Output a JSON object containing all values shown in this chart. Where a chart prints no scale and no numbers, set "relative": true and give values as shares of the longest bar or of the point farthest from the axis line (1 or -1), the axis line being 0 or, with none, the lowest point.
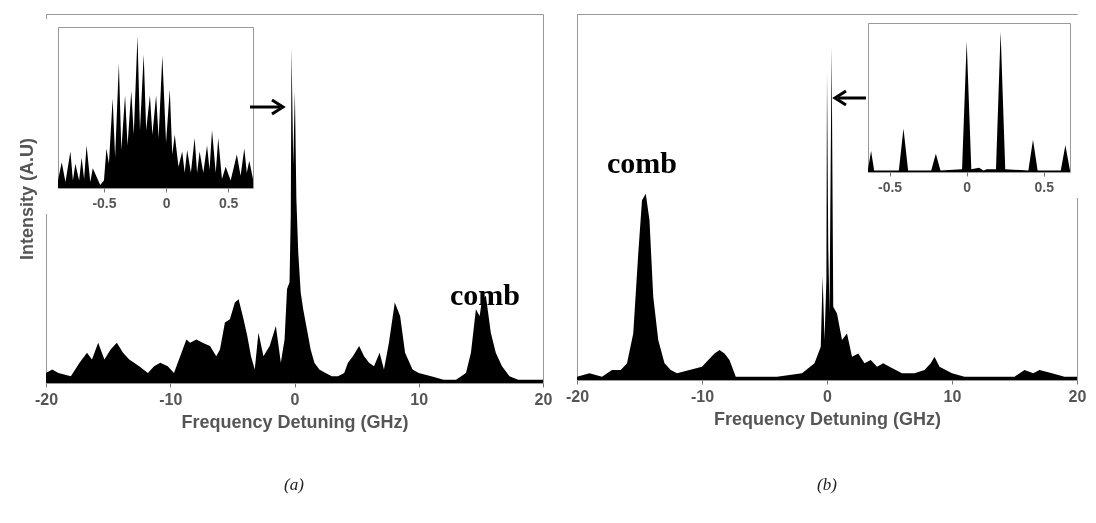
{
  "chart_data": [
    {
      "type": "area",
      "relative": true,
      "color": "#000000",
      "xlabel": "Frequency Detuning (GHz)",
      "ylabel": "Intensity (A.U)",
      "xlim": [
        -20,
        20
      ],
      "xticks": [
        -20,
        -10,
        0,
        10,
        20
      ],
      "x": [
        -20,
        -19.5,
        -19,
        -18,
        -17.3,
        -16.7,
        -16.3,
        -15.8,
        -15.3,
        -14.8,
        -14.3,
        -13.8,
        -13.3,
        -12.5,
        -11.8,
        -11.3,
        -10.8,
        -10.2,
        -9.7,
        -9.2,
        -8.7,
        -8.4,
        -7.9,
        -7.4,
        -6.8,
        -6.3,
        -6,
        -5.6,
        -5.2,
        -4.8,
        -4.5,
        -4.1,
        -3.8,
        -3.5,
        -3.2,
        -2.9,
        -2.5,
        -2,
        -1.5,
        -1.1,
        -0.8,
        -0.6,
        -0.4,
        -0.3,
        -0.24,
        -0.1,
        0.03,
        0.15,
        0.3,
        0.5,
        0.7,
        1,
        1.3,
        1.6,
        2,
        2.5,
        3,
        3.5,
        4,
        4.3,
        4.7,
        5.2,
        5.6,
        6,
        6.4,
        6.85,
        7.2,
        7.6,
        8.07,
        8.5,
        8.9,
        9.5,
        10,
        11,
        12,
        13,
        13.8,
        14.2,
        14.6,
        14.9,
        15.1,
        15.4,
        15.8,
        16.2,
        16.7,
        17.3,
        18,
        19,
        20
      ],
      "values": [
        0.03,
        0.04,
        0.03,
        0.02,
        0.06,
        0.09,
        0.07,
        0.12,
        0.07,
        0.1,
        0.12,
        0.09,
        0.07,
        0.05,
        0.03,
        0.05,
        0.06,
        0.05,
        0.03,
        0.08,
        0.13,
        0.12,
        0.13,
        0.12,
        0.11,
        0.08,
        0.1,
        0.18,
        0.19,
        0.24,
        0.25,
        0.19,
        0.14,
        0.08,
        0.04,
        0.15,
        0.08,
        0.11,
        0.17,
        0.06,
        0.13,
        0.28,
        0.3,
        0.5,
        1.0,
        0.65,
        0.87,
        0.55,
        0.39,
        0.27,
        0.22,
        0.16,
        0.1,
        0.06,
        0.04,
        0.03,
        0.02,
        0.02,
        0.03,
        0.06,
        0.08,
        0.11,
        0.08,
        0.06,
        0.05,
        0.09,
        0.04,
        0.12,
        0.24,
        0.2,
        0.09,
        0.04,
        0.03,
        0.02,
        0.01,
        0.01,
        0.03,
        0.09,
        0.22,
        0.2,
        0.25,
        0.26,
        0.15,
        0.09,
        0.05,
        0.02,
        0.01,
        0.01,
        0.01
      ],
      "annotations": [
        "comb",
        "(a)"
      ]
    },
    {
      "type": "area",
      "relative": true,
      "color": "#000000",
      "xlim": [
        -0.87,
        0.7
      ],
      "xticks": [
        -0.5,
        0,
        0.5
      ],
      "x": [
        -0.87,
        -0.84,
        -0.81,
        -0.77,
        -0.75,
        -0.73,
        -0.7,
        -0.68,
        -0.66,
        -0.64,
        -0.61,
        -0.59,
        -0.53,
        -0.5,
        -0.48,
        -0.46,
        -0.43,
        -0.41,
        -0.38,
        -0.36,
        -0.33,
        -0.31,
        -0.28,
        -0.26,
        -0.23,
        -0.21,
        -0.18,
        -0.16,
        -0.13,
        -0.11,
        -0.08,
        -0.06,
        -0.03,
        0,
        0.03,
        0.05,
        0.07,
        0.1,
        0.13,
        0.15,
        0.17,
        0.2,
        0.23,
        0.25,
        0.27,
        0.3,
        0.33,
        0.35,
        0.37,
        0.4,
        0.42,
        0.45,
        0.48,
        0.52,
        0.57,
        0.6,
        0.63,
        0.65,
        0.67,
        0.7
      ],
      "values": [
        0.05,
        0.17,
        0.04,
        0.24,
        0.05,
        0.16,
        0.05,
        0.2,
        0.06,
        0.28,
        0.04,
        0.13,
        0.02,
        0.05,
        0.26,
        0.16,
        0.59,
        0.2,
        0.82,
        0.25,
        0.61,
        0.28,
        0.64,
        0.35,
        1.0,
        0.38,
        0.88,
        0.38,
        0.61,
        0.35,
        0.61,
        0.33,
        0.87,
        0.3,
        0.65,
        0.22,
        0.35,
        0.14,
        0.24,
        0.1,
        0.25,
        0.1,
        0.33,
        0.1,
        0.24,
        0.1,
        0.28,
        0.12,
        0.38,
        0.1,
        0.33,
        0.06,
        0.14,
        0.05,
        0.22,
        0.08,
        0.26,
        0.1,
        0.18,
        0.06
      ]
    },
    {
      "type": "area",
      "relative": true,
      "color": "#000000",
      "xlabel": "Frequency Detuning (GHz)",
      "xlim": [
        -20,
        20
      ],
      "xticks": [
        -20,
        -10,
        0,
        10,
        20
      ],
      "x": [
        -20,
        -19,
        -18,
        -17.2,
        -16.5,
        -16,
        -15.5,
        -15.1,
        -14.8,
        -14.5,
        -14.2,
        -13.9,
        -13.5,
        -13,
        -12.5,
        -12,
        -11,
        -10,
        -9.5,
        -9,
        -8.6,
        -8.2,
        -7.8,
        -7.3,
        -6,
        -4,
        -2,
        -1,
        -0.5,
        -0.35,
        -0.2,
        -0.05,
        0,
        0.1,
        0.2,
        0.37,
        0.5,
        0.8,
        1.2,
        1.6,
        2,
        2.5,
        3,
        3.5,
        4,
        4.5,
        5,
        5.5,
        6,
        7,
        7.8,
        8.3,
        8.6,
        9,
        9.5,
        10,
        11,
        12,
        14,
        15,
        15.8,
        16.5,
        17,
        18,
        19,
        20
      ],
      "values": [
        0.01,
        0.02,
        0.01,
        0.03,
        0.03,
        0.05,
        0.14,
        0.38,
        0.54,
        0.56,
        0.48,
        0.25,
        0.12,
        0.05,
        0.03,
        0.02,
        0.03,
        0.04,
        0.06,
        0.08,
        0.09,
        0.08,
        0.06,
        0.01,
        0.01,
        0.01,
        0.02,
        0.05,
        0.1,
        0.31,
        0.12,
        0.3,
        0.93,
        0.4,
        0.2,
        1.0,
        0.22,
        0.2,
        0.12,
        0.14,
        0.07,
        0.08,
        0.05,
        0.06,
        0.04,
        0.05,
        0.04,
        0.03,
        0.02,
        0.02,
        0.03,
        0.05,
        0.07,
        0.04,
        0.03,
        0.02,
        0.01,
        0.01,
        0.01,
        0.01,
        0.03,
        0.02,
        0.03,
        0.02,
        0.01,
        0.01
      ],
      "annotations": [
        "comb",
        "(b)"
      ]
    },
    {
      "type": "area",
      "relative": true,
      "color": "#000000",
      "xlim": [
        -0.64,
        0.67
      ],
      "xticks": [
        -0.5,
        0,
        0.5
      ],
      "x": [
        -0.64,
        -0.62,
        -0.6,
        -0.44,
        -0.41,
        -0.38,
        -0.23,
        -0.2,
        -0.17,
        -0.03,
        0,
        0.03,
        0.08,
        0.11,
        0.13,
        0.19,
        0.22,
        0.25,
        0.4,
        0.43,
        0.46,
        0.61,
        0.64,
        0.67
      ],
      "values": [
        0.02,
        0.15,
        0.01,
        0.01,
        0.31,
        0.01,
        0.01,
        0.13,
        0.01,
        0.02,
        0.93,
        0.02,
        0.03,
        0.01,
        0.02,
        0.02,
        1.0,
        0.02,
        0.01,
        0.23,
        0.01,
        0.01,
        0.19,
        0.01
      ]
    }
  ]
}
